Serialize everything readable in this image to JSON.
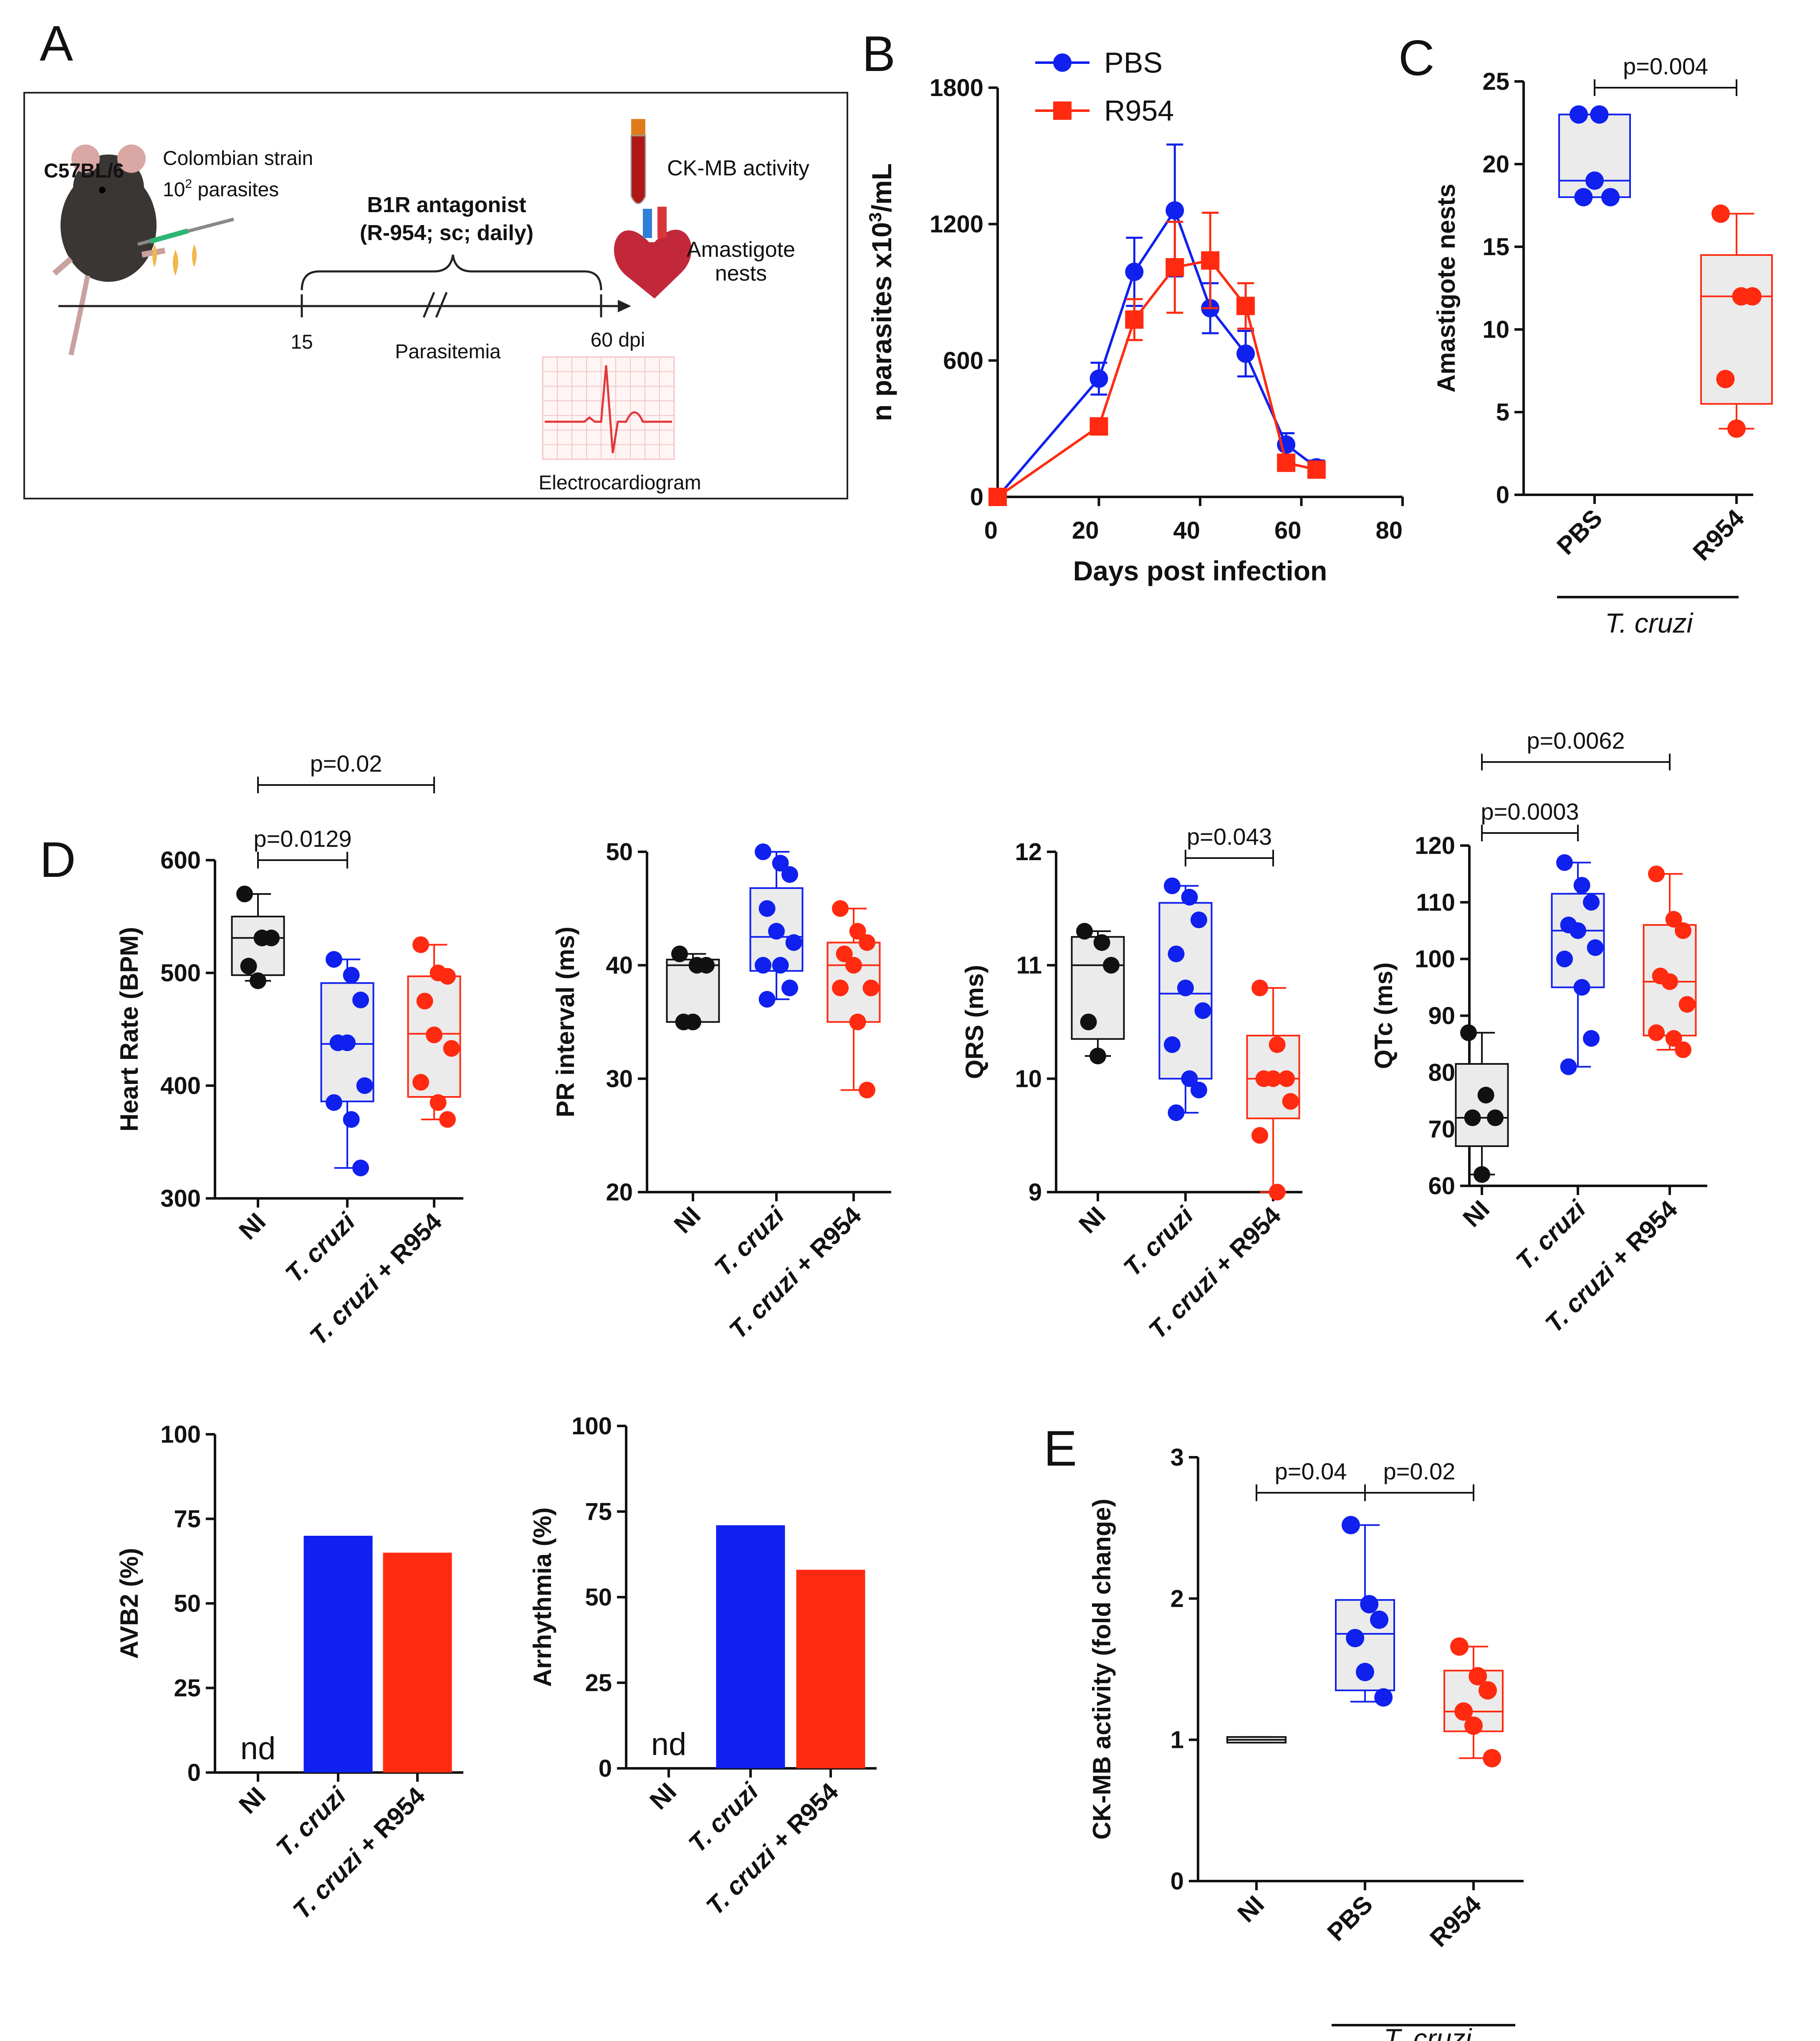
{
  "colors": {
    "ni": "#111111",
    "pbs": "#1020ee",
    "r954": "#ff2a10",
    "box_fill": "#ebebeb"
  },
  "panelA": {
    "letter": "A",
    "mouse_strain": "C57BL/6",
    "inoculum_1": "Colombian strain",
    "inoculum_2": "10",
    "inoculum_sup": "2",
    "inoculum_3": " parasites",
    "treatment_1": "B1R antagonist",
    "treatment_2": "(R-954; sc; daily)",
    "day_start": "15",
    "day_end": "60 dpi",
    "phase": "Parasitemia",
    "ckmb": "CK-MB activity",
    "nests_1": "Amastigote",
    "nests_2": "nests",
    "ecg": "Electrocardiogram"
  },
  "panelB": {
    "letter": "B"
  },
  "panelC": {
    "letter": "C",
    "group_label": "T. cruzi"
  },
  "panelD": {
    "letter": "D"
  },
  "panelE": {
    "letter": "E",
    "group_label": "T. cruzi"
  },
  "chart_data": [
    {
      "id": "B",
      "type": "line",
      "ylabel_main": "n parasites x10",
      "ylabel_sup": "3",
      "ylabel_tail": "/mL",
      "xlabel": "Days post infection",
      "xlim": [
        0,
        80
      ],
      "ylim": [
        0,
        1800
      ],
      "xticks": [
        0,
        20,
        40,
        60,
        80
      ],
      "yticks": [
        0,
        600,
        1200,
        1800
      ],
      "legend_position": "top",
      "series": [
        {
          "name": "PBS",
          "color": "#1020ee",
          "marker": "circle",
          "x": [
            0,
            20,
            27,
            35,
            42,
            49,
            57,
            63
          ],
          "y": [
            0,
            520,
            990,
            1260,
            830,
            630,
            230,
            130
          ],
          "err": [
            0,
            70,
            150,
            290,
            110,
            100,
            50,
            30
          ]
        },
        {
          "name": "R954",
          "color": "#ff2a10",
          "marker": "square",
          "x": [
            0,
            20,
            27,
            35,
            42,
            49,
            57,
            63
          ],
          "y": [
            0,
            310,
            780,
            1010,
            1040,
            840,
            150,
            120
          ],
          "err": [
            0,
            0,
            90,
            200,
            210,
            100,
            0,
            0
          ]
        }
      ]
    },
    {
      "id": "C",
      "type": "box",
      "ylabel": "Amastigote nests",
      "ylim": [
        0,
        25
      ],
      "yticks": [
        0,
        5,
        10,
        15,
        20,
        25
      ],
      "categories": [
        "PBS",
        "R954"
      ],
      "boxes": [
        {
          "q1": 18,
          "median": 19,
          "q3": 23,
          "min": 18,
          "max": 23,
          "points": [
            23,
            23,
            18,
            18,
            19
          ],
          "color": "#1020ee"
        },
        {
          "q1": 5.5,
          "median": 12,
          "q3": 14.5,
          "min": 4,
          "max": 17,
          "points": [
            17,
            12,
            12,
            7,
            4
          ],
          "color": "#ff2a10"
        }
      ],
      "comparisons": [
        {
          "from": 0,
          "to": 1,
          "label": "p=0.004"
        }
      ]
    },
    {
      "id": "D1",
      "type": "box",
      "ylabel": "Heart Rate (BPM)",
      "ylim": [
        300,
        600
      ],
      "yticks": [
        300,
        400,
        500,
        600
      ],
      "categories": [
        "NI",
        "T. cruzi",
        "T. cruzi + R954"
      ],
      "boxes": [
        {
          "q1": 498,
          "median": 531,
          "q3": 550,
          "min": 493,
          "max": 570,
          "points": [
            570,
            531,
            531,
            506,
            493
          ],
          "color": "#111111"
        },
        {
          "q1": 386,
          "median": 437,
          "q3": 491,
          "min": 327,
          "max": 512,
          "points": [
            512,
            498,
            476,
            438,
            438,
            400,
            385,
            370,
            327
          ],
          "color": "#1020ee"
        },
        {
          "q1": 390,
          "median": 446,
          "q3": 497,
          "min": 370,
          "max": 525,
          "points": [
            525,
            500,
            497,
            475,
            445,
            433,
            403,
            385,
            370
          ],
          "color": "#ff2a10"
        }
      ],
      "comparisons": [
        {
          "from": 0,
          "to": 1,
          "label": "p=0.0129"
        },
        {
          "from": 0,
          "to": 2,
          "label": "p=0.02"
        }
      ]
    },
    {
      "id": "D2",
      "type": "box",
      "ylabel": "PR interval (ms)",
      "ylim": [
        20,
        50
      ],
      "yticks": [
        20,
        30,
        40,
        50
      ],
      "categories": [
        "NI",
        "T. cruzi",
        "T. cruzi + R954"
      ],
      "boxes": [
        {
          "q1": 35,
          "median": 40,
          "q3": 40.5,
          "min": 35,
          "max": 41,
          "points": [
            41,
            40,
            40,
            35,
            35
          ],
          "color": "#111111"
        },
        {
          "q1": 39.5,
          "median": 42.5,
          "q3": 46.8,
          "min": 37,
          "max": 50,
          "points": [
            50,
            49,
            48,
            45,
            43,
            42,
            40,
            40,
            38,
            37
          ],
          "color": "#1020ee"
        },
        {
          "q1": 35,
          "median": 40,
          "q3": 42,
          "min": 29,
          "max": 45,
          "points": [
            45,
            43,
            42,
            41,
            40,
            38,
            38,
            35,
            29
          ],
          "color": "#ff2a10"
        }
      ],
      "comparisons": []
    },
    {
      "id": "D3",
      "type": "box",
      "ylabel": "QRS (ms)",
      "ylim": [
        9,
        12
      ],
      "yticks": [
        9,
        10,
        11,
        12
      ],
      "categories": [
        "NI",
        "T. cruzi",
        "T. cruzi + R954"
      ],
      "boxes": [
        {
          "q1": 10.35,
          "median": 11,
          "q3": 11.25,
          "min": 10.2,
          "max": 11.3,
          "points": [
            11.3,
            11.2,
            11,
            10.5,
            10.2
          ],
          "color": "#111111"
        },
        {
          "q1": 10,
          "median": 10.75,
          "q3": 11.55,
          "min": 9.7,
          "max": 11.7,
          "points": [
            11.7,
            11.6,
            11.4,
            11.1,
            10.8,
            10.6,
            10.3,
            10,
            9.9,
            9.7
          ],
          "color": "#1020ee"
        },
        {
          "q1": 9.65,
          "median": 10,
          "q3": 10.38,
          "min": 9,
          "max": 10.8,
          "points": [
            10.8,
            10.3,
            10,
            10,
            10,
            9.8,
            9.5,
            9
          ],
          "color": "#ff2a10"
        }
      ],
      "comparisons": [
        {
          "from": 1,
          "to": 2,
          "label": "p=0.043"
        }
      ]
    },
    {
      "id": "D4",
      "type": "box",
      "ylabel": "QTc (ms)",
      "ylim": [
        60,
        120
      ],
      "yticks": [
        60,
        70,
        80,
        90,
        100,
        110,
        120
      ],
      "categories": [
        "NI",
        "T. cruzi",
        "T. cruzi + R954"
      ],
      "boxes": [
        {
          "q1": 67,
          "median": 72,
          "q3": 81.5,
          "min": 62,
          "max": 87,
          "points": [
            87,
            76,
            72,
            72,
            62
          ],
          "color": "#111111"
        },
        {
          "q1": 95,
          "median": 105,
          "q3": 111.5,
          "min": 81,
          "max": 117,
          "points": [
            117,
            113,
            110,
            106,
            105,
            102,
            100,
            95,
            86,
            81
          ],
          "color": "#1020ee"
        },
        {
          "q1": 86.5,
          "median": 96,
          "q3": 106,
          "min": 84,
          "max": 115,
          "points": [
            115,
            107,
            105,
            97,
            96,
            92,
            87,
            86,
            84
          ],
          "color": "#ff2a10"
        }
      ],
      "comparisons": [
        {
          "from": 0,
          "to": 1,
          "label": "p=0.0003"
        },
        {
          "from": 0,
          "to": 2,
          "label": "p=0.0062"
        }
      ]
    },
    {
      "id": "D5",
      "type": "bar",
      "ylabel": "AVB2 (%)",
      "ylim": [
        0,
        100
      ],
      "yticks": [
        0,
        25,
        50,
        75,
        100
      ],
      "categories": [
        "NI",
        "T. cruzi",
        "T. cruzi + R954"
      ],
      "values": [
        0,
        70,
        65
      ],
      "annotations": [
        "nd",
        "",
        ""
      ]
    },
    {
      "id": "D6",
      "type": "bar",
      "ylabel": "Arrhythmia (%)",
      "ylim": [
        0,
        100
      ],
      "yticks": [
        0,
        25,
        50,
        75,
        100
      ],
      "categories": [
        "NI",
        "T. cruzi",
        "T. cruzi + R954"
      ],
      "values": [
        0,
        71,
        58
      ],
      "annotations": [
        "nd",
        "",
        ""
      ]
    },
    {
      "id": "E",
      "type": "box",
      "ylabel": "CK-MB activity (fold change)",
      "ylim": [
        0,
        3
      ],
      "yticks": [
        0,
        1,
        2,
        3
      ],
      "categories": [
        "NI",
        "PBS",
        "R954"
      ],
      "boxes": [
        {
          "q1": 0.98,
          "median": 1.0,
          "q3": 1.02,
          "min": 0.98,
          "max": 1.02,
          "points": [],
          "color": "#111111"
        },
        {
          "q1": 1.35,
          "median": 1.75,
          "q3": 1.99,
          "min": 1.27,
          "max": 2.52,
          "points": [
            2.52,
            1.96,
            1.85,
            1.72,
            1.48,
            1.3
          ],
          "color": "#1020ee"
        },
        {
          "q1": 1.06,
          "median": 1.2,
          "q3": 1.49,
          "min": 0.87,
          "max": 1.66,
          "points": [
            1.66,
            1.45,
            1.35,
            1.2,
            1.1,
            0.87
          ],
          "color": "#ff2a10"
        }
      ],
      "comparisons": [
        {
          "from": 0,
          "to": 1,
          "label": "p=0.04"
        },
        {
          "from": 1,
          "to": 2,
          "label": "p=0.02"
        }
      ]
    }
  ]
}
